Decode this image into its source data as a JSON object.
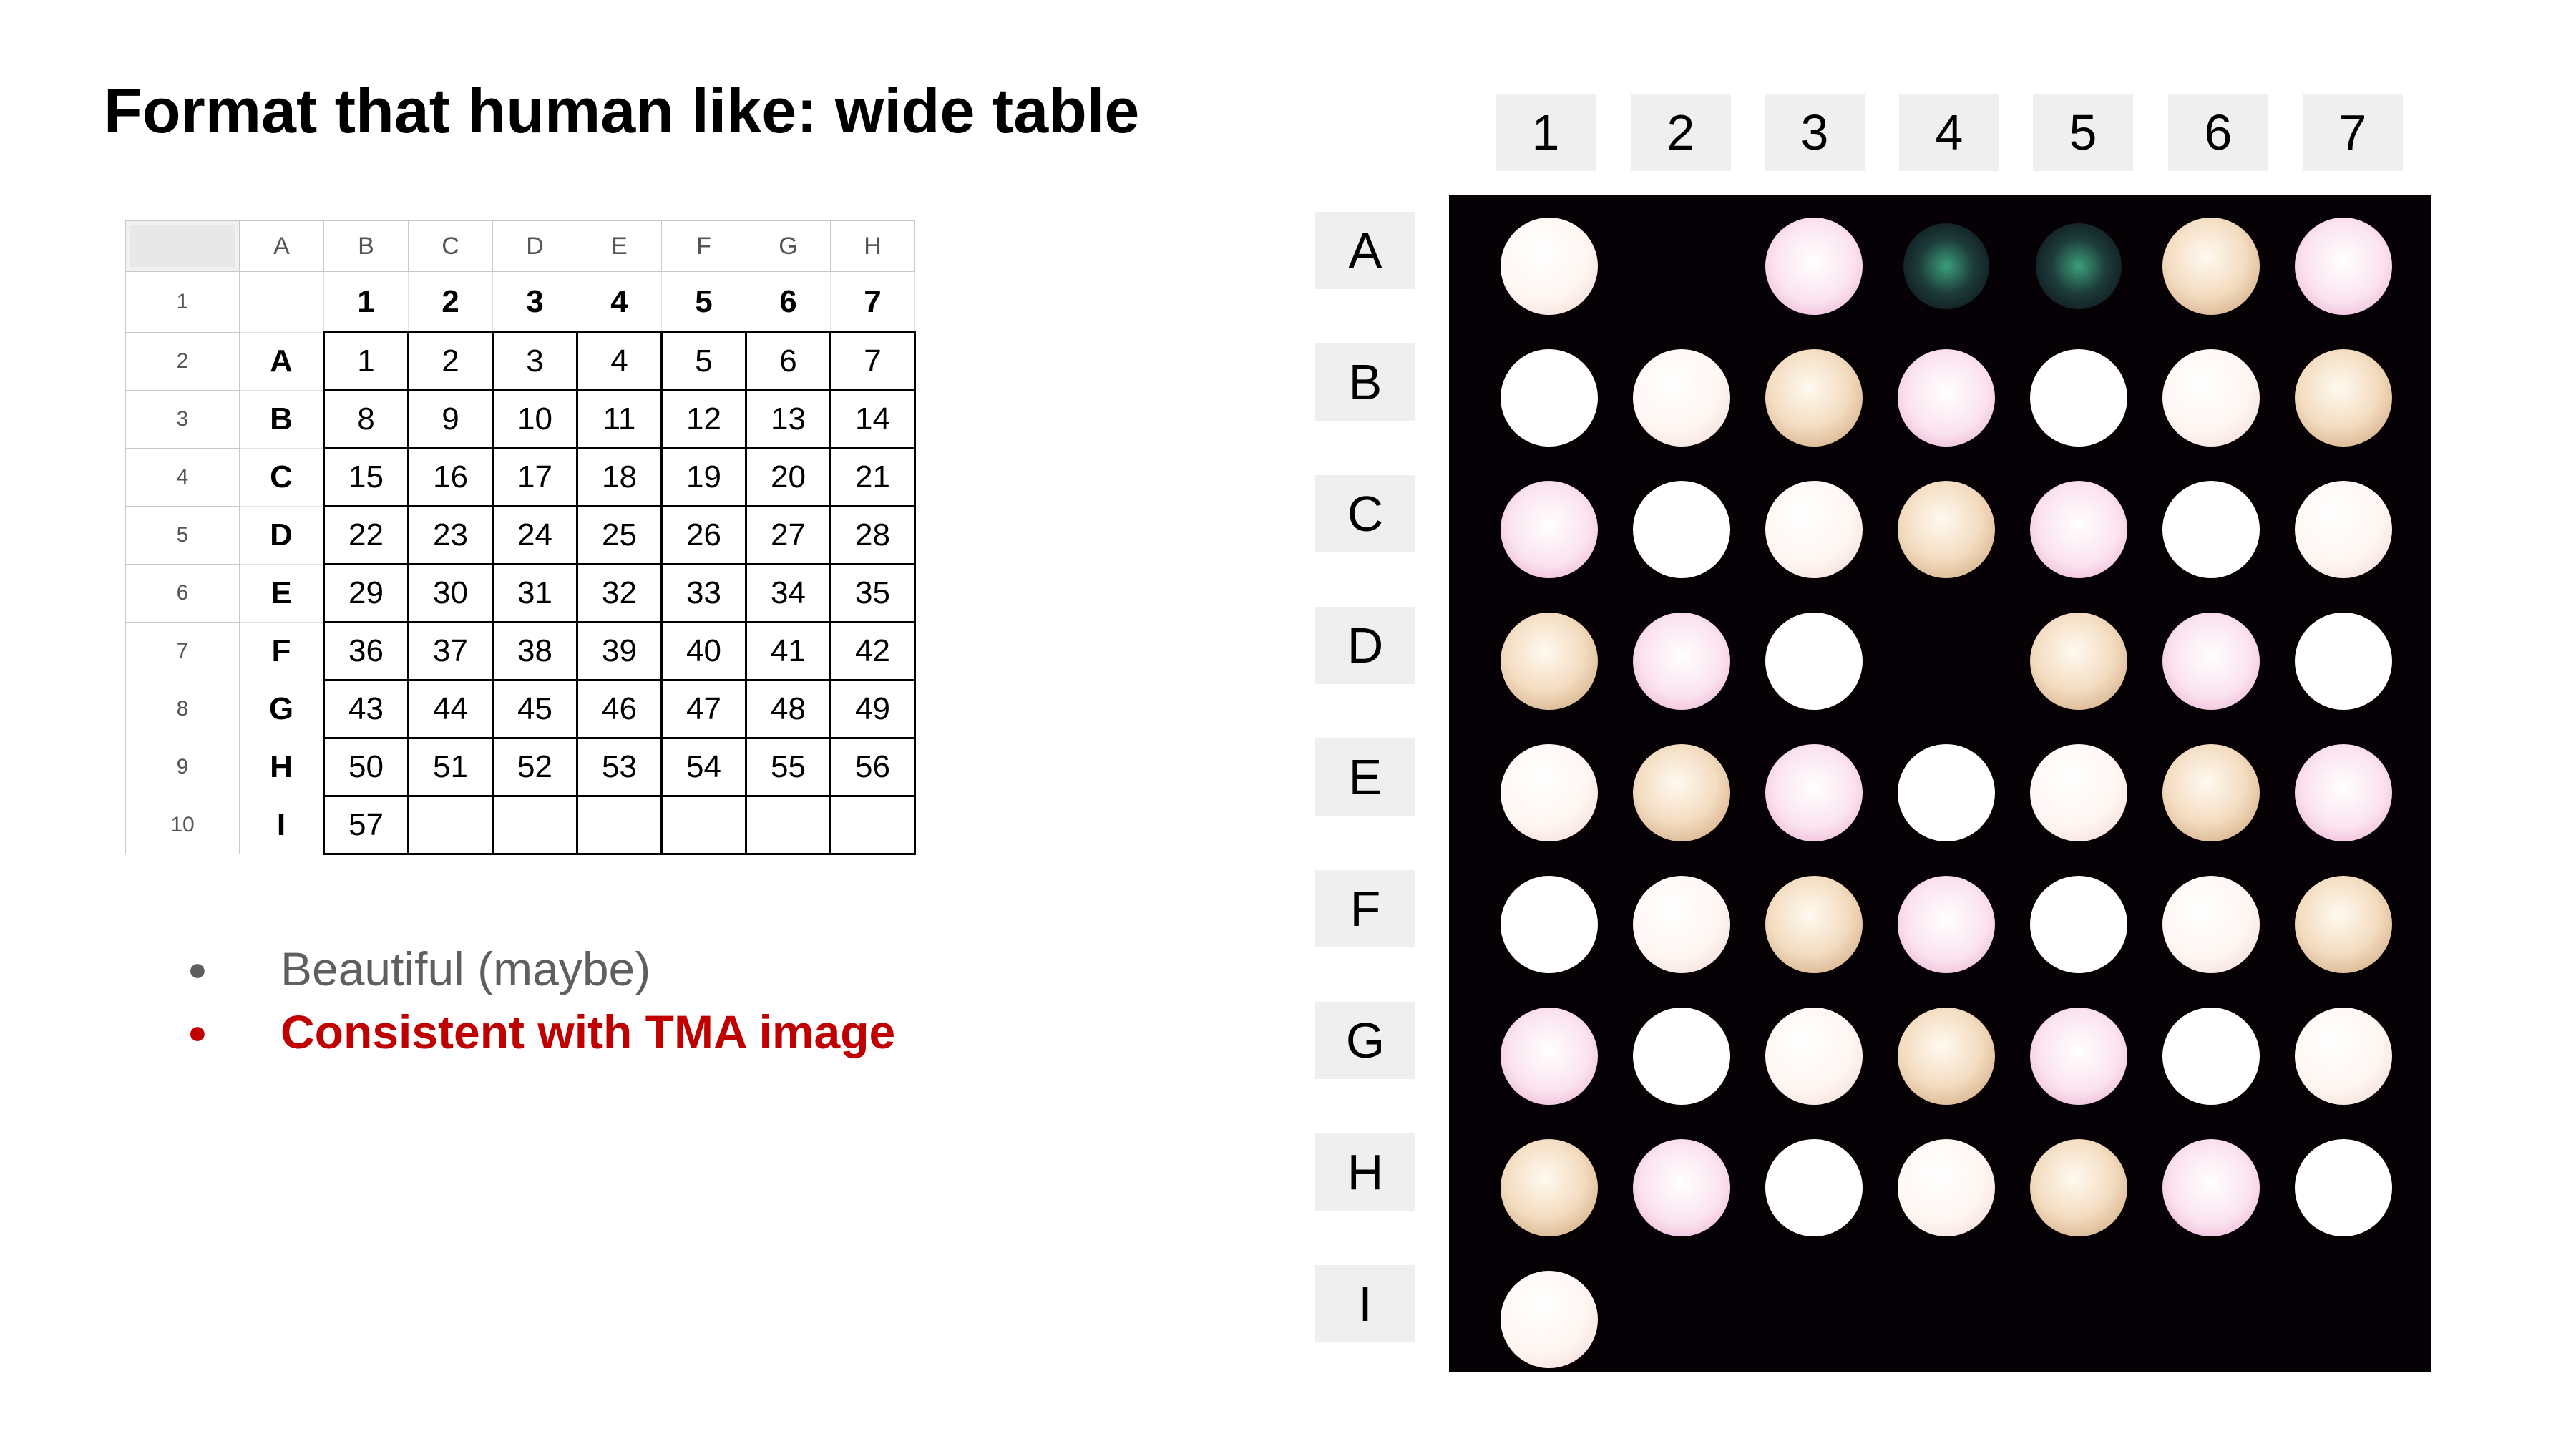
{
  "title": "Format that human like: wide table",
  "spreadsheet": {
    "col_headers": [
      "A",
      "B",
      "C",
      "D",
      "E",
      "F",
      "G",
      "H"
    ],
    "row_headers": [
      "1",
      "2",
      "3",
      "4",
      "5",
      "6",
      "7",
      "8",
      "9",
      "10"
    ],
    "header_row": [
      "1",
      "2",
      "3",
      "4",
      "5",
      "6",
      "7"
    ],
    "rows": [
      {
        "label": "A",
        "values": [
          "1",
          "2",
          "3",
          "4",
          "5",
          "6",
          "7"
        ]
      },
      {
        "label": "B",
        "values": [
          "8",
          "9",
          "10",
          "11",
          "12",
          "13",
          "14"
        ]
      },
      {
        "label": "C",
        "values": [
          "15",
          "16",
          "17",
          "18",
          "19",
          "20",
          "21"
        ]
      },
      {
        "label": "D",
        "values": [
          "22",
          "23",
          "24",
          "25",
          "26",
          "27",
          "28"
        ]
      },
      {
        "label": "E",
        "values": [
          "29",
          "30",
          "31",
          "32",
          "33",
          "34",
          "35"
        ]
      },
      {
        "label": "F",
        "values": [
          "36",
          "37",
          "38",
          "39",
          "40",
          "41",
          "42"
        ]
      },
      {
        "label": "G",
        "values": [
          "43",
          "44",
          "45",
          "46",
          "47",
          "48",
          "49"
        ]
      },
      {
        "label": "H",
        "values": [
          "50",
          "51",
          "52",
          "53",
          "54",
          "55",
          "56"
        ]
      },
      {
        "label": "I",
        "values": [
          "57",
          "",
          "",
          "",
          "",
          "",
          ""
        ]
      }
    ]
  },
  "bullets": [
    {
      "text": "Beautiful (maybe)",
      "color": "#5f5f5f"
    },
    {
      "text": "Consistent with TMA image",
      "color": "#c00000"
    }
  ],
  "tma": {
    "column_labels": [
      "1",
      "2",
      "3",
      "4",
      "5",
      "6",
      "7"
    ],
    "row_labels": [
      "A",
      "B",
      "C",
      "D",
      "E",
      "F",
      "G",
      "H",
      "I"
    ],
    "cores": [
      [
        "present",
        "absent",
        "present",
        "faint",
        "faint",
        "present",
        "present"
      ],
      [
        "present",
        "present",
        "present",
        "present",
        "present",
        "present",
        "present"
      ],
      [
        "present",
        "present",
        "present",
        "present",
        "present",
        "present",
        "present"
      ],
      [
        "present",
        "present",
        "present",
        "absent",
        "present",
        "present",
        "present"
      ],
      [
        "present",
        "present",
        "present",
        "present",
        "present",
        "present",
        "present"
      ],
      [
        "present",
        "present",
        "present",
        "present",
        "present",
        "present",
        "present"
      ],
      [
        "present",
        "present",
        "present",
        "present",
        "present",
        "present",
        "present"
      ],
      [
        "present",
        "present",
        "present",
        "present",
        "present",
        "present",
        "present"
      ],
      [
        "present",
        "absent",
        "absent",
        "absent",
        "absent",
        "absent",
        "absent"
      ]
    ]
  }
}
